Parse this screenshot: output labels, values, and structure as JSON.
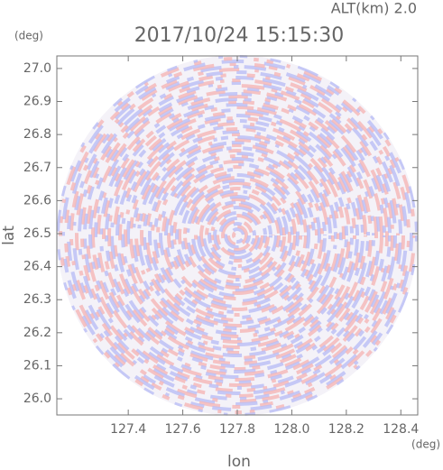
{
  "chart_data": {
    "type": "radar-field",
    "title": "2017/10/24 15:15:30",
    "altitude_label": "ALT(km) 2.0",
    "ylabel": "lat",
    "xlabel": "lon",
    "y_unit": "(deg)",
    "x_unit": "(deg)",
    "xlim": [
      127.138,
      128.462
    ],
    "ylim": [
      25.951,
      27.038
    ],
    "xticks": [
      127.4,
      127.6,
      {
        "value": 127.8,
        "label": "127.8"
      },
      {
        "value": 128.0,
        "label": "128.0"
      },
      128.2,
      128.4
    ],
    "yticks": [
      {
        "value": 26.0,
        "label": "26.0"
      },
      26.1,
      26.2,
      26.3,
      26.4,
      26.5,
      26.6,
      26.7,
      26.8,
      26.9,
      {
        "value": 27.0,
        "label": "27.0"
      }
    ]
  }
}
